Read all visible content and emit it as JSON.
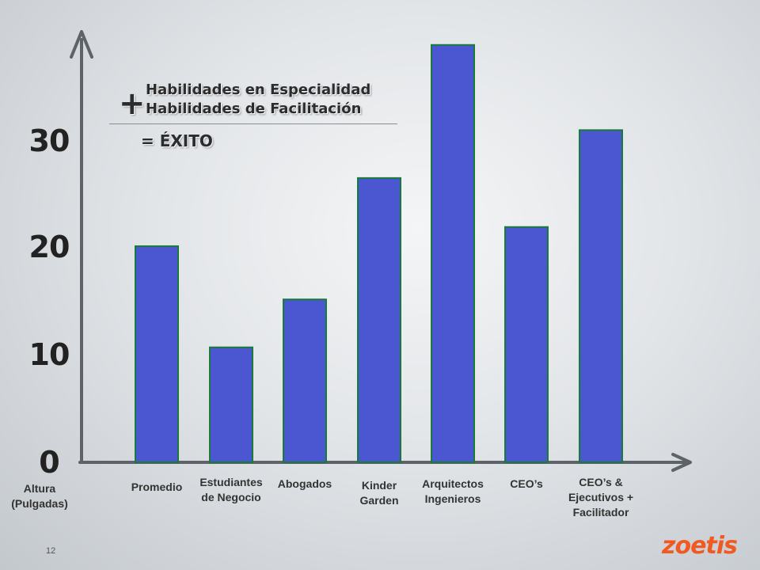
{
  "chart_data": {
    "type": "bar",
    "categories": [
      "Promedio",
      "Estudiantes\nde Negocio",
      "Abogados",
      "Kinder\nGarden",
      "Arquitectos\nIngenieros",
      "CEO’s",
      "CEO’s &\nEjecutivos +\nFacilitador"
    ],
    "values": [
      20.3,
      10.8,
      15.3,
      26.7,
      39.2,
      22.1,
      31.2
    ],
    "ylabel": "Altura\n(Pulgadas)",
    "yticks": [
      "0",
      "10",
      "20",
      "30"
    ],
    "ylim": [
      0,
      40
    ],
    "bar_color": "#4a57d1",
    "bar_edge_color": "#1a7a3a",
    "grid": false,
    "legend": "none"
  },
  "equation": {
    "plus": "+",
    "line1": "Habilidades en Especialidad",
    "line2": "Habilidades de Facilitación",
    "result": "= ÉXITO"
  },
  "page_number": "12",
  "logo_text": "zoetis"
}
